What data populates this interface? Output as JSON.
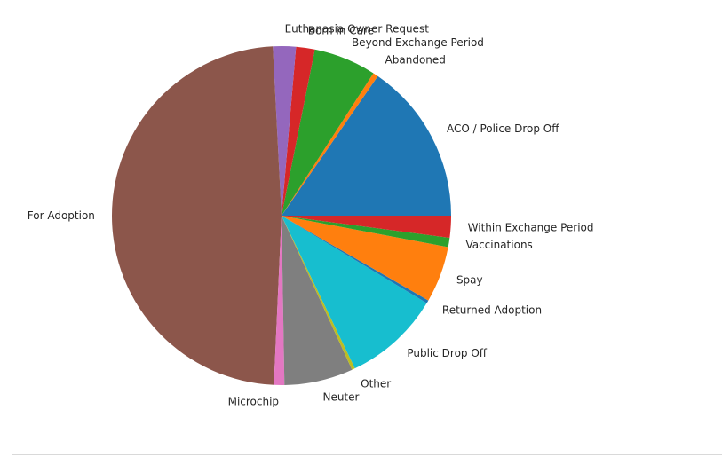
{
  "chart_data": {
    "type": "pie",
    "title": "",
    "start_angle_deg": 0,
    "direction": "counterclockwise",
    "slices": [
      {
        "label": "ACO / Police Drop Off",
        "value": 15.5,
        "color": "#1f77b4"
      },
      {
        "label": "Abandoned",
        "value": 0.5,
        "color": "#ff7f0e"
      },
      {
        "label": "Beyond Exchange Period",
        "value": 6.0,
        "color": "#2ca02c"
      },
      {
        "label": "Born in Care",
        "value": 1.8,
        "color": "#d62728"
      },
      {
        "label": "Euthanasia Owner Request",
        "value": 2.2,
        "color": "#9467bd"
      },
      {
        "label": "For Adoption",
        "value": 48.8,
        "color": "#8c564b"
      },
      {
        "label": "Microchip",
        "value": 1.0,
        "color": "#e377c2"
      },
      {
        "label": "Neuter",
        "value": 6.6,
        "color": "#7f7f7f"
      },
      {
        "label": "Other",
        "value": 0.3,
        "color": "#bcbd22"
      },
      {
        "label": "Public Drop Off",
        "value": 9.3,
        "color": "#17becf"
      },
      {
        "label": "Returned Adoption",
        "value": 0.3,
        "color": "#1f77b4"
      },
      {
        "label": "Spay",
        "value": 5.4,
        "color": "#ff7f0e"
      },
      {
        "label": "Vaccinations",
        "value": 0.9,
        "color": "#2ca02c"
      },
      {
        "label": "Within Exchange Period",
        "value": 2.1,
        "color": "#d62728"
      }
    ]
  }
}
